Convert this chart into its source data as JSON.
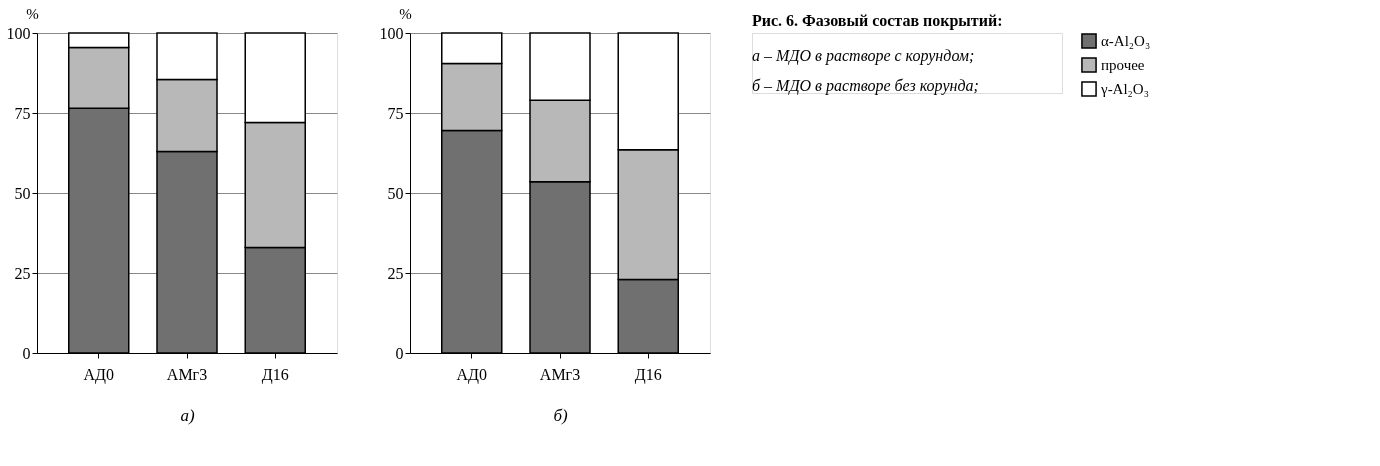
{
  "chart_data": [
    {
      "type": "bar",
      "stacked": true,
      "xlabel": "а)",
      "ylabel": "%",
      "categories": [
        "АД0",
        "АМг3",
        "Д16"
      ],
      "ylim": [
        0,
        100
      ],
      "yticks": [
        0,
        25,
        50,
        75,
        100
      ],
      "grid": "y",
      "legend": "right",
      "series": [
        {
          "name": "α-Al₂O₃",
          "color": "#707070",
          "values": [
            76.5,
            63,
            33
          ]
        },
        {
          "name": "прочее",
          "color": "#b8b8b8",
          "values": [
            19,
            22.5,
            39
          ]
        },
        {
          "name": "γ-Al₂O₃",
          "color": "#ffffff",
          "values": [
            4.5,
            14.5,
            28
          ]
        }
      ]
    },
    {
      "type": "bar",
      "stacked": true,
      "xlabel": "б)",
      "ylabel": "%",
      "categories": [
        "АД0",
        "АМг3",
        "Д16"
      ],
      "ylim": [
        0,
        100
      ],
      "yticks": [
        0,
        25,
        50,
        75,
        100
      ],
      "grid": "y",
      "legend": "right",
      "series": [
        {
          "name": "α-Al₂O₃",
          "color": "#707070",
          "values": [
            69.5,
            53.5,
            23
          ]
        },
        {
          "name": "прочее",
          "color": "#b8b8b8",
          "values": [
            21,
            25.5,
            40.5
          ]
        },
        {
          "name": "γ-Al₂O₃",
          "color": "#ffffff",
          "values": [
            9.5,
            21,
            36.5
          ]
        }
      ]
    },
    {
      "type": "other",
      "title": "Рис. 6. Фазовый состав покрытий:",
      "annotations": [
        "а – МДО в растворе с корундом;",
        "б – МДО в растворе без корунда;"
      ]
    }
  ]
}
